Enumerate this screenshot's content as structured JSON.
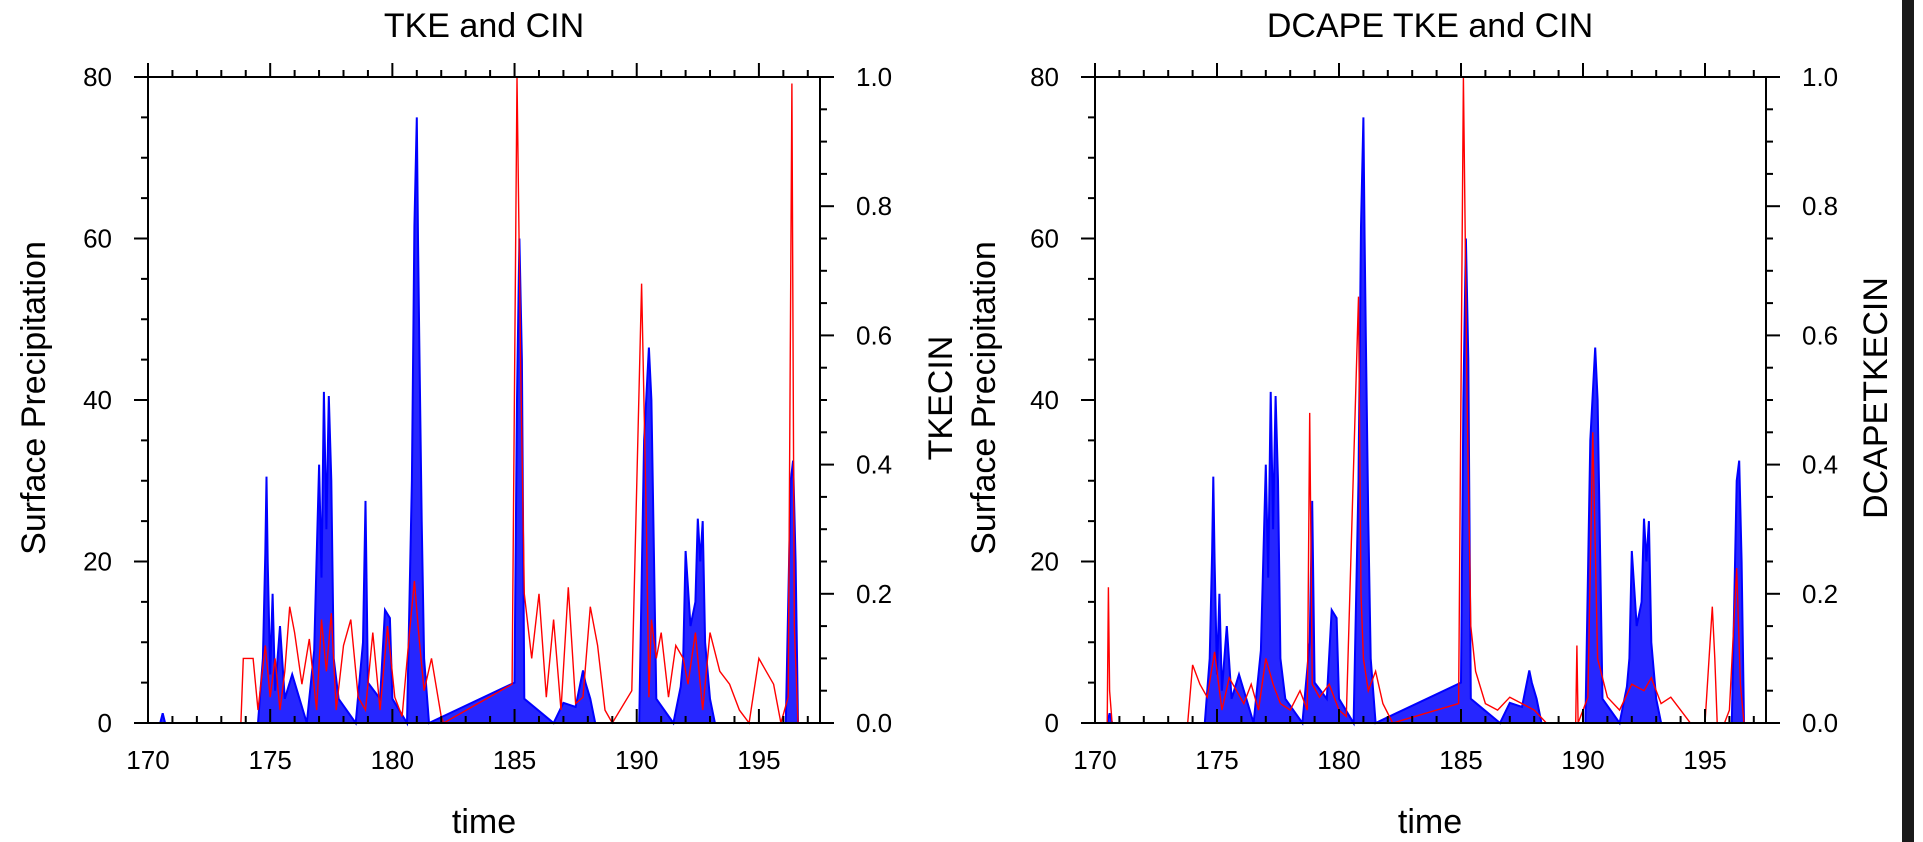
{
  "chart_data": [
    {
      "type": "line",
      "title": "TKE and CIN",
      "xlabel": "time",
      "ylabel_left": "Surface Precipitation",
      "ylabel_right": "TKECIN",
      "xlim": [
        170,
        197.5
      ],
      "ylim_left": [
        0,
        80
      ],
      "ylim_right": [
        0,
        1.0
      ],
      "x_ticks": [
        "170",
        "175",
        "180",
        "185",
        "190",
        "195"
      ],
      "y_left_ticks": [
        "0",
        "20",
        "40",
        "60",
        "80"
      ],
      "y_right_ticks": [
        "0.0",
        "0.2",
        "0.4",
        "0.6",
        "0.8",
        "1.0"
      ],
      "colors": {
        "precipitation": "#0000ff",
        "ratio": "#ff0000"
      },
      "series": [
        {
          "axis": "left",
          "color": "#0000ff",
          "x": [
            170.5,
            170.6,
            170.7,
            174.5,
            174.7,
            174.8,
            174.85,
            174.9,
            175.0,
            175.1,
            175.2,
            175.4,
            175.6,
            175.9,
            176.5,
            176.8,
            177.0,
            177.1,
            177.2,
            177.3,
            177.4,
            177.5,
            177.6,
            177.8,
            178.5,
            178.8,
            178.9,
            179.0,
            179.5,
            179.7,
            179.9,
            180.0,
            180.6,
            180.8,
            180.9,
            181.0,
            181.05,
            181.1,
            181.2,
            181.3,
            181.5,
            185.0,
            185.1,
            185.2,
            185.3,
            185.4,
            186.6,
            187.0,
            187.5,
            187.8,
            187.9,
            188.1,
            188.3,
            190.1,
            190.3,
            190.5,
            190.6,
            190.8,
            191.5,
            191.8,
            191.9,
            192.0,
            192.2,
            192.4,
            192.5,
            192.6,
            192.7,
            192.8,
            193.0,
            193.2,
            196.1,
            196.3,
            196.4,
            196.5,
            196.6
          ],
          "y": [
            0,
            1.2,
            0,
            0,
            8,
            21,
            30.5,
            20,
            6,
            16,
            4,
            12,
            3,
            6,
            0,
            9,
            32,
            18,
            41,
            24,
            40.5,
            30,
            8,
            3,
            0,
            10,
            27.5,
            5,
            3,
            14,
            13,
            3,
            0,
            30,
            61.5,
            75,
            60,
            48,
            25,
            8,
            0,
            5,
            40,
            60,
            45,
            3,
            0,
            2.5,
            2,
            6.5,
            5,
            3,
            0,
            0,
            35,
            46.5,
            40,
            3,
            0,
            4.5,
            8,
            21.3,
            12,
            15,
            25.3,
            20,
            25,
            10,
            3,
            0,
            0,
            30,
            32.5,
            20,
            0
          ]
        },
        {
          "axis": "right",
          "color": "#ff0000",
          "x": [
            170.5,
            173.8,
            173.9,
            174.3,
            174.5,
            174.8,
            175.0,
            175.2,
            175.4,
            175.6,
            175.8,
            176.0,
            176.3,
            176.6,
            176.9,
            177.1,
            177.3,
            177.5,
            177.7,
            178.0,
            178.3,
            178.6,
            178.9,
            179.2,
            179.5,
            179.8,
            180.1,
            180.4,
            180.7,
            180.9,
            181.1,
            181.3,
            181.6,
            182.0,
            182.1,
            184.9,
            185.1,
            185.25,
            185.4,
            185.7,
            186.0,
            186.3,
            186.6,
            186.9,
            187.2,
            187.5,
            187.8,
            188.1,
            188.4,
            188.7,
            189.0,
            189.8,
            190.2,
            190.4,
            190.5,
            190.6,
            190.8,
            191.0,
            191.3,
            191.6,
            191.9,
            192.1,
            192.4,
            192.7,
            193.0,
            193.4,
            193.8,
            194.2,
            194.6,
            195.0,
            195.3,
            195.6,
            195.9,
            196.2,
            196.35,
            196.45,
            196.6,
            196.8
          ],
          "y": [
            0,
            0,
            0.1,
            0.1,
            0.02,
            0.12,
            0.04,
            0.1,
            0.02,
            0.08,
            0.18,
            0.14,
            0.06,
            0.13,
            0.02,
            0.16,
            0.08,
            0.17,
            0.02,
            0.12,
            0.16,
            0.04,
            0.02,
            0.14,
            0.02,
            0.15,
            0.04,
            0.01,
            0.14,
            0.22,
            0.13,
            0.05,
            0.1,
            0.01,
            0.0,
            0.06,
            1.0,
            0.55,
            0.2,
            0.1,
            0.2,
            0.04,
            0.16,
            0.02,
            0.21,
            0.03,
            0.04,
            0.18,
            0.12,
            0.02,
            0.0,
            0.05,
            0.68,
            0.3,
            0.04,
            0.16,
            0.1,
            0.14,
            0.04,
            0.12,
            0.1,
            0.06,
            0.14,
            0.02,
            0.14,
            0.08,
            0.06,
            0.02,
            0.0,
            0.1,
            0.08,
            0.06,
            0.0,
            0.04,
            0.99,
            0.15,
            0.0,
            0.0
          ]
        }
      ]
    },
    {
      "type": "line",
      "title": "DCAPE TKE and CIN",
      "xlabel": "time",
      "ylabel_left": "Surface Precipitation",
      "ylabel_right": "DCAPETKECIN",
      "xlim": [
        170,
        197.5
      ],
      "ylim_left": [
        0,
        80
      ],
      "ylim_right": [
        0,
        1.0
      ],
      "x_ticks": [
        "170",
        "175",
        "180",
        "185",
        "190",
        "195"
      ],
      "y_left_ticks": [
        "0",
        "20",
        "40",
        "60",
        "80"
      ],
      "y_right_ticks": [
        "0.0",
        "0.2",
        "0.4",
        "0.6",
        "0.8",
        "1.0"
      ],
      "colors": {
        "precipitation": "#0000ff",
        "ratio": "#ff0000"
      },
      "series": [
        {
          "axis": "left",
          "color": "#0000ff",
          "x": [
            170.5,
            170.6,
            170.7,
            174.5,
            174.7,
            174.8,
            174.85,
            174.9,
            175.0,
            175.1,
            175.2,
            175.4,
            175.6,
            175.9,
            176.5,
            176.8,
            177.0,
            177.1,
            177.2,
            177.3,
            177.4,
            177.5,
            177.6,
            177.8,
            178.5,
            178.8,
            178.9,
            179.0,
            179.5,
            179.7,
            179.9,
            180.0,
            180.6,
            180.8,
            180.9,
            181.0,
            181.05,
            181.1,
            181.2,
            181.3,
            181.5,
            185.0,
            185.1,
            185.2,
            185.3,
            185.4,
            186.6,
            187.0,
            187.5,
            187.8,
            187.9,
            188.1,
            188.3,
            190.1,
            190.3,
            190.5,
            190.6,
            190.8,
            191.5,
            191.8,
            191.9,
            192.0,
            192.2,
            192.4,
            192.5,
            192.6,
            192.7,
            192.8,
            193.0,
            193.2,
            196.1,
            196.3,
            196.4,
            196.5,
            196.6
          ],
          "y": [
            0,
            1.2,
            0,
            0,
            8,
            21,
            30.5,
            20,
            6,
            16,
            4,
            12,
            3,
            6,
            0,
            9,
            32,
            18,
            41,
            24,
            40.5,
            30,
            8,
            3,
            0,
            10,
            27.5,
            5,
            3,
            14,
            13,
            3,
            0,
            30,
            61.5,
            75,
            60,
            48,
            25,
            8,
            0,
            5,
            40,
            60,
            45,
            3,
            0,
            2.5,
            2,
            6.5,
            5,
            3,
            0,
            0,
            35,
            46.5,
            40,
            3,
            0,
            4.5,
            8,
            21.3,
            12,
            15,
            25.3,
            20,
            25,
            10,
            3,
            0,
            0,
            30,
            32.5,
            20,
            0
          ]
        },
        {
          "axis": "right",
          "color": "#ff0000",
          "x": [
            170.5,
            170.55,
            170.6,
            170.7,
            173.8,
            174.0,
            174.3,
            174.6,
            174.9,
            175.2,
            175.5,
            175.8,
            176.1,
            176.4,
            176.7,
            177.0,
            177.3,
            177.6,
            178.0,
            178.4,
            178.7,
            178.8,
            178.9,
            179.2,
            179.6,
            180.0,
            180.3,
            180.8,
            180.9,
            181.0,
            181.2,
            181.5,
            181.8,
            182.2,
            184.9,
            185.1,
            185.25,
            185.4,
            185.6,
            186.0,
            186.5,
            187.0,
            187.5,
            188.0,
            188.5,
            189.0,
            189.7,
            189.75,
            189.8,
            190.2,
            190.4,
            190.6,
            191.0,
            191.5,
            192.0,
            192.5,
            192.8,
            193.2,
            193.6,
            194.0,
            194.4,
            195.0,
            195.3,
            195.4,
            195.5,
            195.8,
            196.0,
            196.3,
            196.45,
            196.6
          ],
          "y": [
            0,
            0.21,
            0.05,
            0,
            0,
            0.09,
            0.06,
            0.04,
            0.11,
            0.02,
            0.07,
            0.05,
            0.03,
            0.06,
            0.02,
            0.1,
            0.06,
            0.03,
            0.02,
            0.05,
            0.02,
            0.48,
            0.06,
            0.04,
            0.06,
            0.02,
            0.01,
            0.66,
            0.2,
            0.1,
            0.05,
            0.08,
            0.03,
            0.0,
            0.03,
            1.0,
            0.5,
            0.15,
            0.08,
            0.03,
            0.02,
            0.04,
            0.03,
            0.02,
            0.0,
            0.0,
            0.0,
            0.12,
            0.0,
            0.04,
            0.45,
            0.1,
            0.04,
            0.02,
            0.06,
            0.05,
            0.07,
            0.03,
            0.04,
            0.02,
            0.0,
            0.0,
            0.18,
            0.1,
            0.0,
            0.0,
            0.02,
            0.24,
            0.06,
            0.0
          ]
        }
      ]
    }
  ]
}
